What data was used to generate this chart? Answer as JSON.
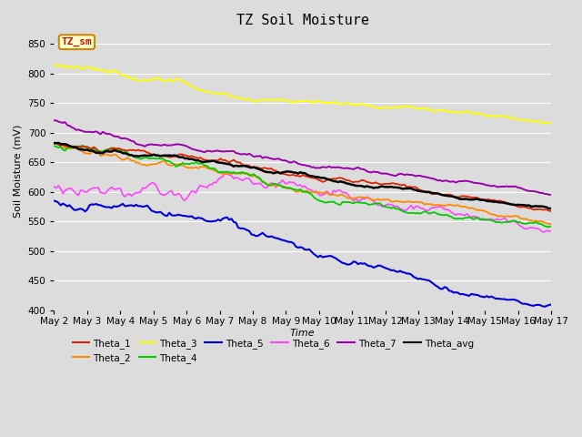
{
  "title": "TZ Soil Moisture",
  "xlabel": "Time",
  "ylabel": "Soil Moisture (mV)",
  "ylim": [
    400,
    870
  ],
  "xlim": [
    0,
    15
  ],
  "x_tick_labels": [
    "May 2",
    "May 3",
    "May 4",
    "May 5",
    "May 6",
    "May 7",
    "May 8",
    "May 9",
    "May 10",
    "May 11",
    "May 12",
    "May 13",
    "May 14",
    "May 15",
    "May 16",
    "May 17"
  ],
  "background_color": "#dcdcdc",
  "plot_bg_color": "#dcdcdc",
  "grid_color": "#ffffff",
  "colors": {
    "Theta_1": "#dd2200",
    "Theta_2": "#ff8800",
    "Theta_3": "#ffff00",
    "Theta_4": "#00cc00",
    "Theta_5": "#0000dd",
    "Theta_6": "#ff44ff",
    "Theta_7": "#9900aa",
    "Theta_avg": "#000000"
  },
  "starts": {
    "Theta_1": 683,
    "Theta_2": 680,
    "Theta_3": 813,
    "Theta_4": 678,
    "Theta_5": 588,
    "Theta_6": 616,
    "Theta_7": 717,
    "Theta_avg": 683
  },
  "ends": {
    "Theta_1": 560,
    "Theta_2": 542,
    "Theta_3": 717,
    "Theta_4": 540,
    "Theta_5": 422,
    "Theta_6": 547,
    "Theta_7": 598,
    "Theta_avg": 560
  },
  "annotation_text": "TZ_sm",
  "annotation_color": "#cc1100",
  "annotation_bg": "#ffffcc",
  "annotation_border": "#cc8800",
  "legend_order": [
    "Theta_1",
    "Theta_2",
    "Theta_3",
    "Theta_4",
    "Theta_5",
    "Theta_6",
    "Theta_7",
    "Theta_avg"
  ]
}
